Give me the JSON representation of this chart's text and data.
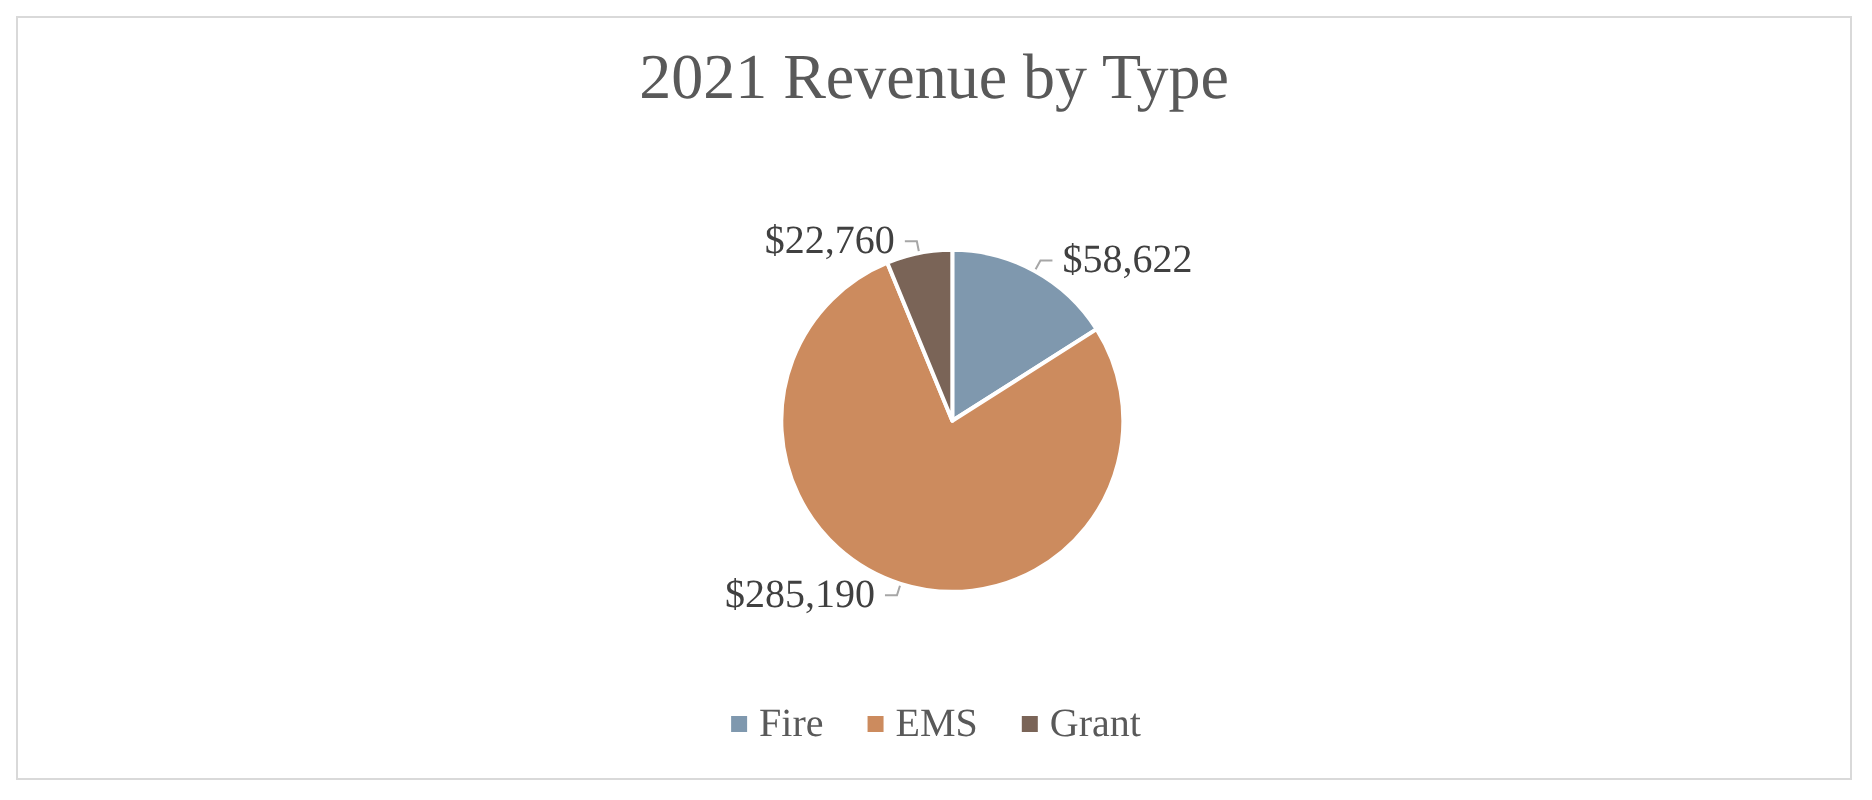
{
  "chart_data": {
    "type": "pie",
    "title": "2021 Revenue by Type",
    "categories": [
      "Fire",
      "EMS",
      "Grant"
    ],
    "values": [
      58622,
      285190,
      22760
    ],
    "colors": [
      "#7f98ae",
      "#cc8b5e",
      "#7a6457"
    ],
    "value_labels": [
      "$58,622",
      "$285,190",
      "$22,760"
    ],
    "legend": "bottom"
  }
}
